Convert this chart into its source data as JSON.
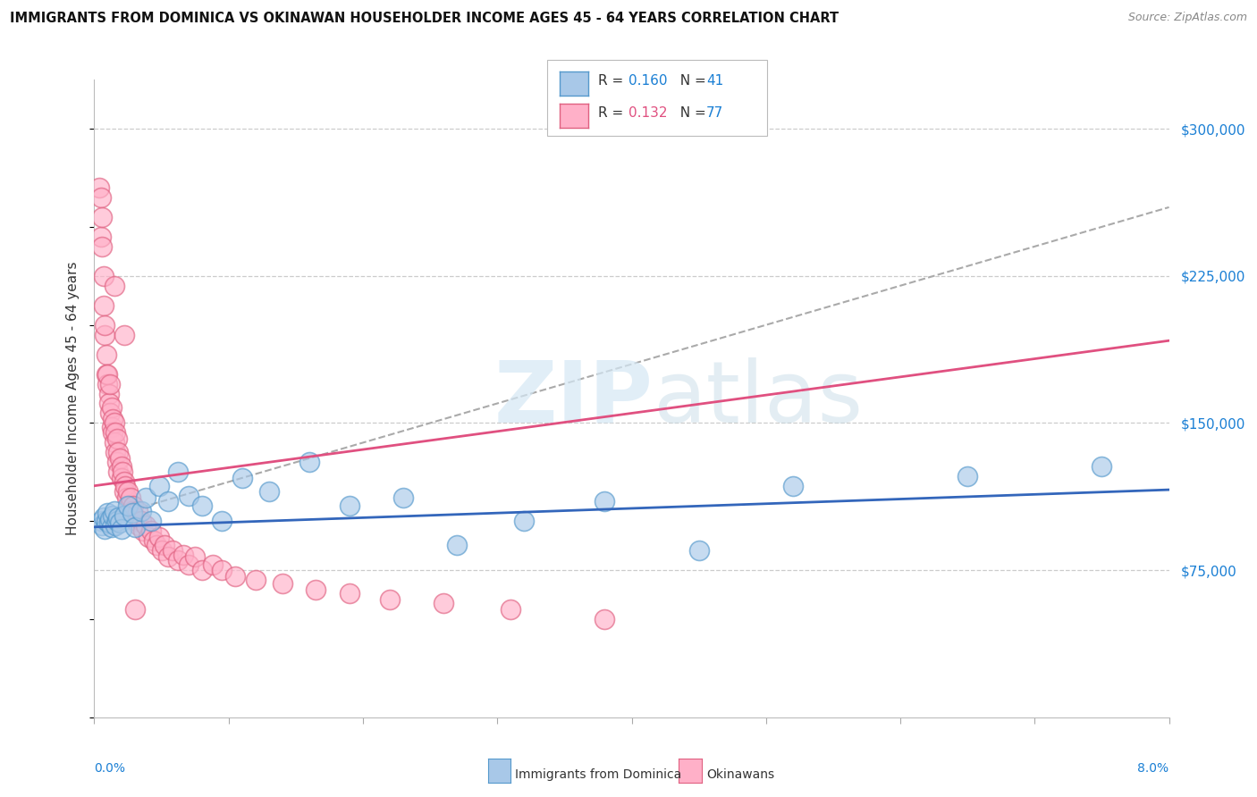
{
  "title": "IMMIGRANTS FROM DOMINICA VS OKINAWAN HOUSEHOLDER INCOME AGES 45 - 64 YEARS CORRELATION CHART",
  "source": "Source: ZipAtlas.com",
  "ylabel": "Householder Income Ages 45 - 64 years",
  "xlim": [
    0.0,
    8.0
  ],
  "ylim": [
    0,
    325000
  ],
  "yticks": [
    75000,
    150000,
    225000,
    300000
  ],
  "ytick_labels": [
    "$75,000",
    "$150,000",
    "$225,000",
    "$300,000"
  ],
  "dominica": {
    "name": "Immigrants from Dominica",
    "R": 0.16,
    "N": 41,
    "face_color": "#a8c8e8",
    "edge_color": "#5599cc",
    "trend_color": "#3366bb",
    "x": [
      0.05,
      0.06,
      0.07,
      0.08,
      0.09,
      0.1,
      0.11,
      0.12,
      0.13,
      0.14,
      0.15,
      0.16,
      0.17,
      0.18,
      0.19,
      0.2,
      0.22,
      0.25,
      0.28,
      0.3,
      0.35,
      0.38,
      0.42,
      0.48,
      0.55,
      0.62,
      0.7,
      0.8,
      0.95,
      1.1,
      1.3,
      1.6,
      1.9,
      2.3,
      2.7,
      3.2,
      3.8,
      4.5,
      5.2,
      6.5,
      7.5
    ],
    "y": [
      100000,
      98000,
      102000,
      96000,
      100000,
      104000,
      99000,
      101000,
      97000,
      103000,
      105000,
      98000,
      100000,
      102000,
      99000,
      96000,
      103000,
      108000,
      104000,
      97000,
      105000,
      112000,
      100000,
      118000,
      110000,
      125000,
      113000,
      108000,
      100000,
      122000,
      115000,
      130000,
      108000,
      112000,
      88000,
      100000,
      110000,
      85000,
      118000,
      123000,
      128000
    ],
    "trend_x": [
      0.0,
      8.0
    ],
    "trend_y": [
      97000,
      116000
    ]
  },
  "okinawa": {
    "name": "Okinawans",
    "R": 0.132,
    "N": 77,
    "face_color": "#ffb0c8",
    "edge_color": "#e06080",
    "trend_color": "#e05080",
    "x": [
      0.04,
      0.05,
      0.05,
      0.06,
      0.06,
      0.07,
      0.07,
      0.08,
      0.08,
      0.09,
      0.09,
      0.1,
      0.1,
      0.11,
      0.11,
      0.12,
      0.12,
      0.13,
      0.13,
      0.14,
      0.14,
      0.15,
      0.15,
      0.16,
      0.16,
      0.17,
      0.17,
      0.18,
      0.18,
      0.19,
      0.2,
      0.2,
      0.21,
      0.22,
      0.22,
      0.23,
      0.24,
      0.25,
      0.26,
      0.27,
      0.28,
      0.29,
      0.3,
      0.31,
      0.32,
      0.33,
      0.35,
      0.36,
      0.38,
      0.4,
      0.42,
      0.44,
      0.46,
      0.48,
      0.5,
      0.52,
      0.55,
      0.58,
      0.62,
      0.66,
      0.7,
      0.75,
      0.8,
      0.88,
      0.95,
      1.05,
      1.2,
      1.4,
      1.65,
      1.9,
      2.2,
      2.6,
      3.1,
      3.8,
      0.15,
      0.22,
      0.3
    ],
    "y": [
      270000,
      265000,
      245000,
      255000,
      240000,
      210000,
      225000,
      195000,
      200000,
      185000,
      175000,
      170000,
      175000,
      165000,
      160000,
      170000,
      155000,
      158000,
      148000,
      152000,
      145000,
      150000,
      140000,
      145000,
      135000,
      142000,
      130000,
      135000,
      125000,
      132000,
      128000,
      122000,
      125000,
      120000,
      115000,
      118000,
      112000,
      115000,
      108000,
      112000,
      105000,
      108000,
      102000,
      100000,
      105000,
      98000,
      100000,
      95000,
      98000,
      92000,
      95000,
      90000,
      88000,
      92000,
      85000,
      88000,
      82000,
      85000,
      80000,
      83000,
      78000,
      82000,
      75000,
      78000,
      75000,
      72000,
      70000,
      68000,
      65000,
      63000,
      60000,
      58000,
      55000,
      50000,
      220000,
      195000,
      55000
    ],
    "trend_x": [
      0.0,
      8.0
    ],
    "trend_y": [
      118000,
      192000
    ]
  },
  "overall_trend_x": [
    0.0,
    8.0
  ],
  "overall_trend_y": [
    100000,
    260000
  ],
  "watermark_zip": "ZIP",
  "watermark_atlas": "atlas",
  "bg_color": "#ffffff"
}
